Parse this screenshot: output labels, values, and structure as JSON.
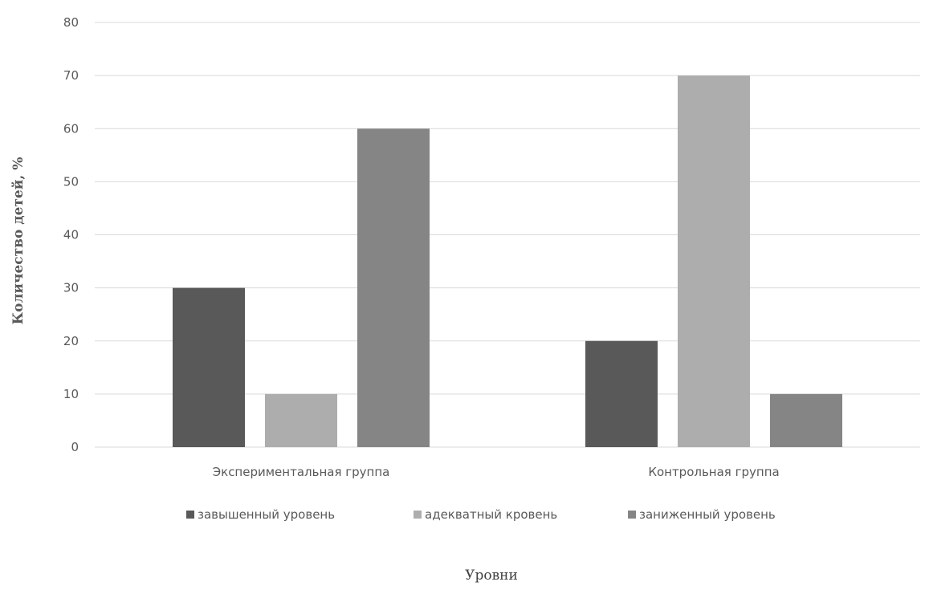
{
  "chart_data": {
    "type": "bar",
    "categories": [
      "Экспериментальная группа",
      "Контрольная группа"
    ],
    "series": [
      {
        "name": "завышенный уровень",
        "values": [
          30,
          20
        ],
        "color": "#595959"
      },
      {
        "name": "адекватный кровень",
        "values": [
          10,
          70
        ],
        "color": "#adadad"
      },
      {
        "name": "заниженный уровень",
        "values": [
          60,
          10
        ],
        "color": "#858585"
      }
    ],
    "xlabel": "Уровни",
    "ylabel": "Количество детей, %",
    "ylim": [
      0,
      80
    ],
    "yticks": [
      0,
      10,
      20,
      30,
      40,
      50,
      60,
      70,
      80
    ],
    "grid": true,
    "legend": "bottom"
  }
}
